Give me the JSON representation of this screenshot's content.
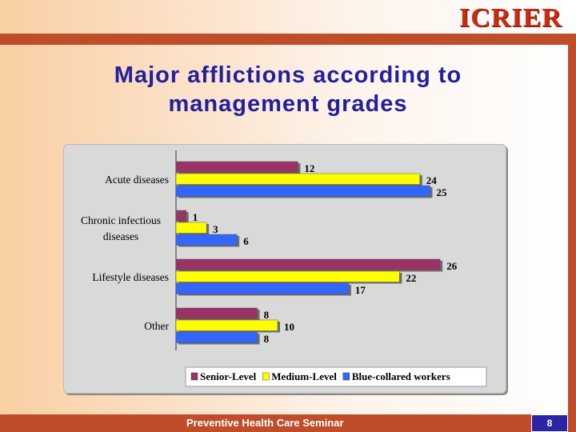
{
  "header": {
    "logo_text": "ICRIER"
  },
  "slide": {
    "title_line1": "Major afflictions according to",
    "title_line2": "management grades"
  },
  "footer": {
    "text": "Preventive Health Care Seminar",
    "page_number": "8"
  },
  "colors": {
    "accent_bar": "#bf4d2a",
    "title": "#22209c",
    "page_box": "#2b25a6"
  },
  "chart_data": {
    "type": "bar",
    "orientation": "horizontal",
    "categories": [
      [
        "Acute diseases"
      ],
      [
        "Chronic infectious",
        "diseases"
      ],
      [
        "Lifestyle diseases"
      ],
      [
        "Other"
      ]
    ],
    "series": [
      {
        "name": "Senior-Level",
        "color": "#993366",
        "values": [
          12,
          1,
          26,
          8
        ]
      },
      {
        "name": "Medium-Level",
        "color": "#ffff00",
        "values": [
          24,
          3,
          22,
          10
        ]
      },
      {
        "name": "Blue-collared workers",
        "color": "#3366ff",
        "values": [
          25,
          6,
          17,
          8
        ]
      }
    ],
    "xlim": [
      0,
      30
    ],
    "grid": false,
    "legend_position": "bottom"
  }
}
